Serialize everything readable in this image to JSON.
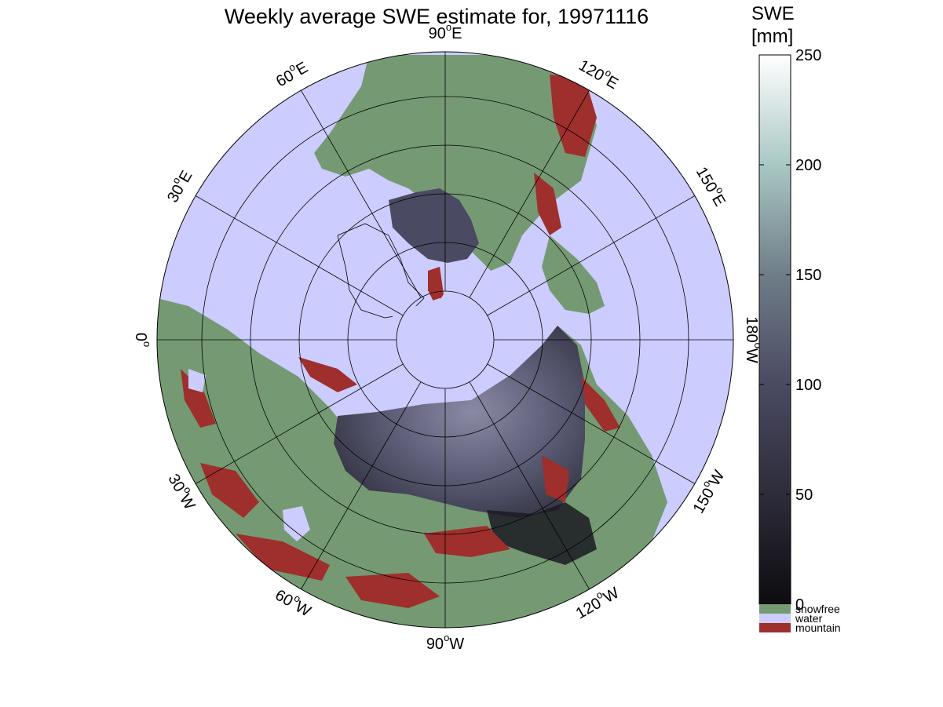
{
  "title": "Weekly average SWE estimate for, 19971116",
  "projection": "north-polar-stereographic",
  "colorbar": {
    "heading_line1": "SWE",
    "heading_line2": "[mm]",
    "range": [
      0,
      250
    ],
    "ticks": [
      "0",
      "50",
      "100",
      "150",
      "200",
      "250"
    ],
    "tick_values": [
      0,
      50,
      100,
      150,
      200,
      250
    ],
    "categories": [
      {
        "label": "snowfree",
        "color": "#759a73"
      },
      {
        "label": "water",
        "color": "#ccccff"
      },
      {
        "label": "mountain",
        "color": "#9e2f2c"
      }
    ]
  },
  "meridian_labels": [
    {
      "deg": "90",
      "hemi": "W",
      "lon": -90
    },
    {
      "deg": "120",
      "hemi": "W",
      "lon": -120
    },
    {
      "deg": "150",
      "hemi": "W",
      "lon": -150
    },
    {
      "deg": "180",
      "hemi": "W",
      "lon": 180
    },
    {
      "deg": "150",
      "hemi": "E",
      "lon": 150
    },
    {
      "deg": "120",
      "hemi": "E",
      "lon": 120
    },
    {
      "deg": "90",
      "hemi": "E",
      "lon": 90
    },
    {
      "deg": "60",
      "hemi": "E",
      "lon": 60
    },
    {
      "deg": "30",
      "hemi": "E",
      "lon": 30
    },
    {
      "deg": "0",
      "hemi": "",
      "lon": 0
    },
    {
      "deg": "30",
      "hemi": "W",
      "lon": -30
    },
    {
      "deg": "60",
      "hemi": "W",
      "lon": -60
    }
  ],
  "colors": {
    "snowfree": "#759a73",
    "water": "#ccccff",
    "mountain": "#9e2f2c",
    "swe_low": "#0d0c10",
    "swe_mid": "#4a4a62",
    "swe_high": "#ffffff"
  }
}
